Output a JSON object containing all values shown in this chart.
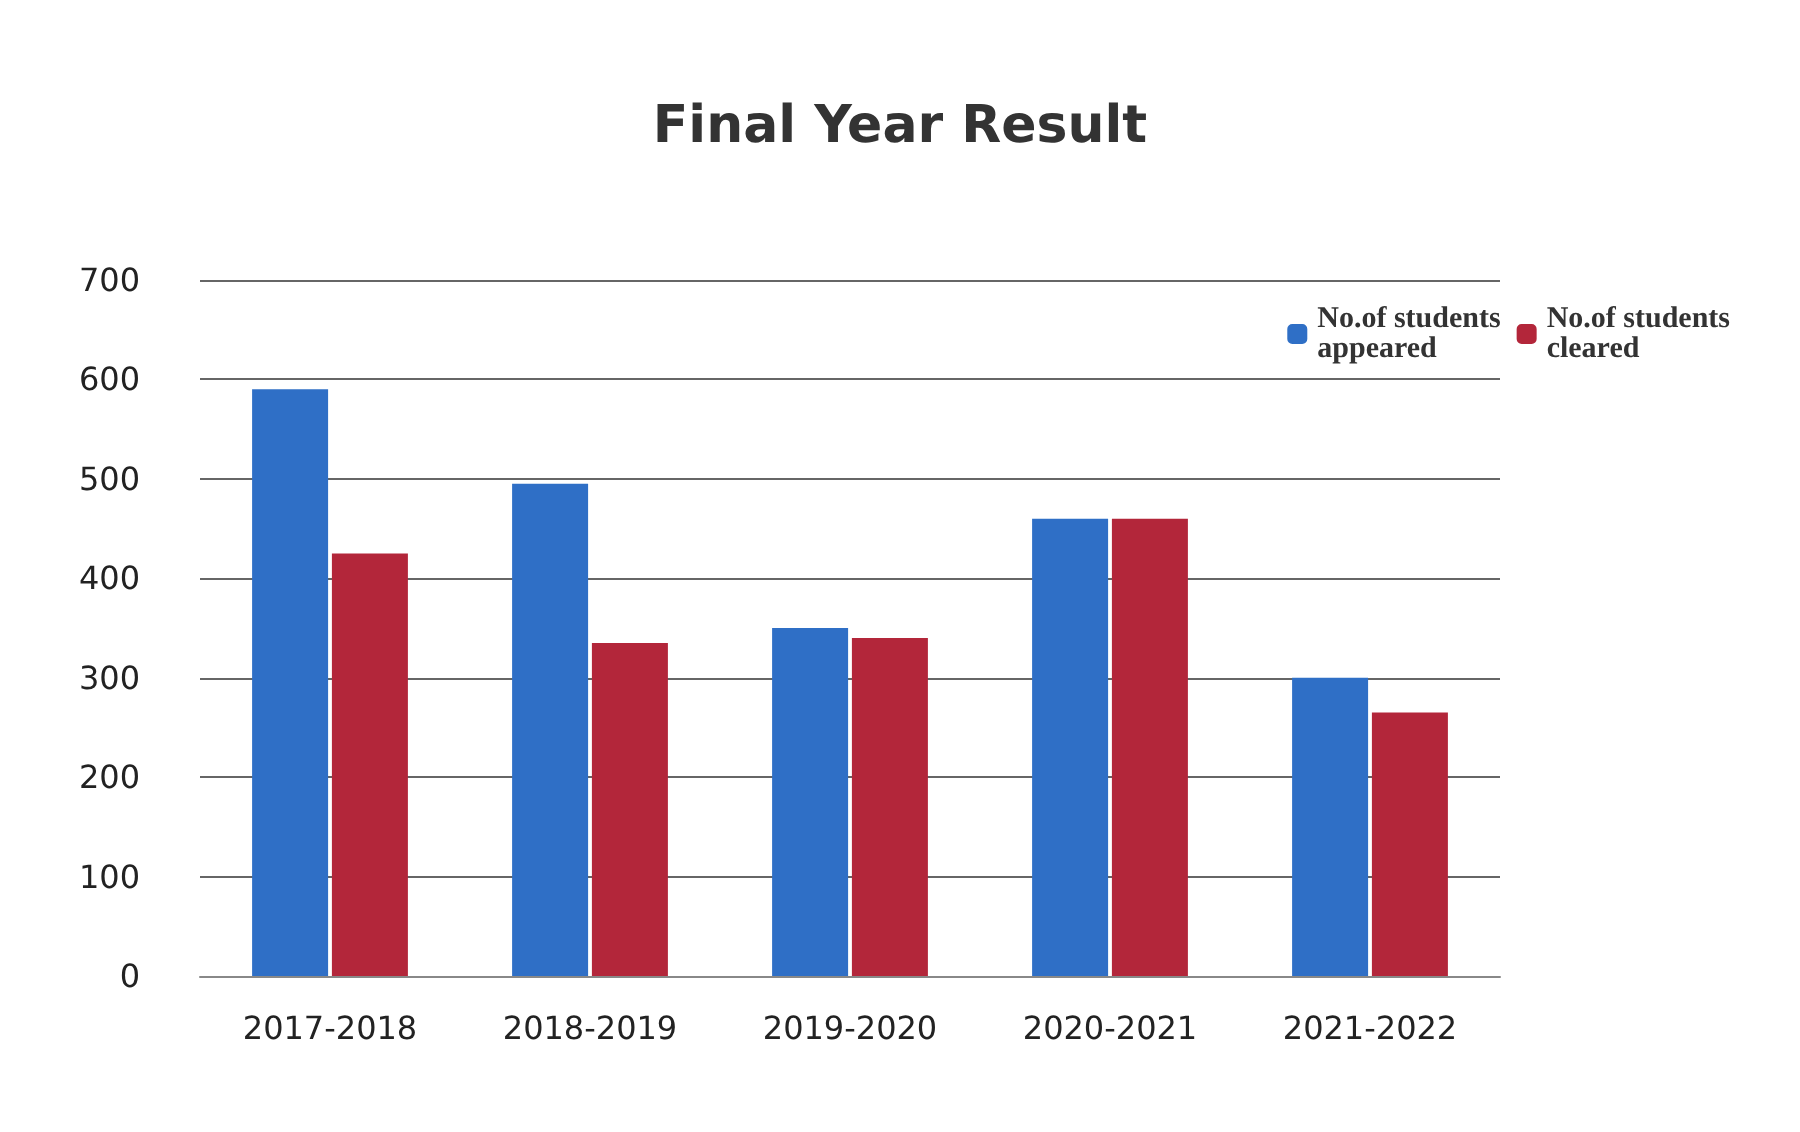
{
  "chart_data": {
    "type": "bar",
    "title": "Final Year Result",
    "categories": [
      "2017-2018",
      "2018-2019",
      "2019-2020",
      "2020-2021",
      "2021-2022"
    ],
    "series": [
      {
        "name": "No.of students appeared",
        "color": "#2f6fc6",
        "values": [
          590,
          495,
          350,
          460,
          300
        ]
      },
      {
        "name": "No.of students cleared",
        "color": "#b3263a",
        "values": [
          425,
          335,
          340,
          460,
          265
        ]
      }
    ],
    "ylim": [
      0,
      700
    ],
    "yticks": [
      0,
      100,
      200,
      300,
      400,
      500,
      600,
      700
    ],
    "grid": "y",
    "legend": "top right"
  }
}
